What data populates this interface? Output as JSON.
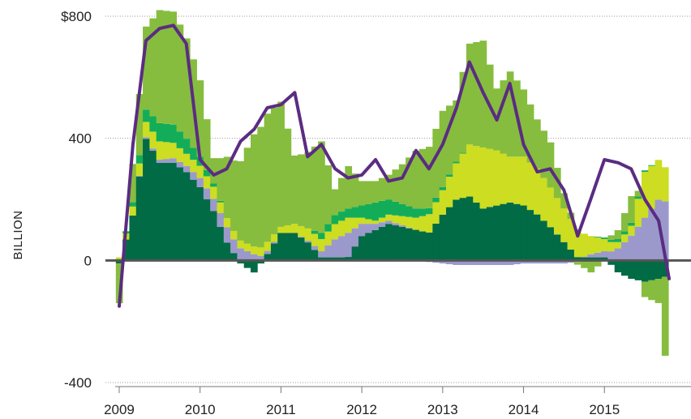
{
  "chart_data": {
    "type": "area",
    "title": "",
    "xlabel": "",
    "ylabel": "BILLION",
    "xlim": [
      2008.95,
      2015.85
    ],
    "ylim": [
      -420,
      830
    ],
    "x_ticks": [
      2009,
      2010,
      2011,
      2012,
      2013,
      2014,
      2015
    ],
    "x_tick_labels": [
      "2009",
      "2010",
      "2011",
      "2012",
      "2013",
      "2014",
      "2015"
    ],
    "y_ticks": [
      -400,
      0,
      400,
      800
    ],
    "y_tick_labels": [
      "-400",
      "0",
      "400",
      "$800"
    ],
    "grid": "horizontal dotted",
    "legend": "none",
    "x": [
      2009.0,
      2009.17,
      2009.33,
      2009.5,
      2009.67,
      2009.83,
      2010.0,
      2010.17,
      2010.33,
      2010.5,
      2010.67,
      2010.83,
      2011.0,
      2011.17,
      2011.33,
      2011.5,
      2011.67,
      2011.83,
      2012.0,
      2012.17,
      2012.33,
      2012.5,
      2012.67,
      2012.83,
      2013.0,
      2013.17,
      2013.33,
      2013.5,
      2013.67,
      2013.83,
      2014.0,
      2014.17,
      2014.33,
      2014.5,
      2014.67,
      2014.83,
      2015.0,
      2015.17,
      2015.33,
      2015.5,
      2015.67,
      2015.8
    ],
    "series": [
      {
        "color": "#006b45",
        "values": [
          -10,
          150,
          400,
          320,
          320,
          290,
          240,
          160,
          60,
          -10,
          -40,
          20,
          90,
          90,
          60,
          10,
          10,
          10,
          80,
          100,
          120,
          110,
          100,
          90,
          150,
          200,
          210,
          170,
          180,
          190,
          180,
          150,
          110,
          60,
          10,
          10,
          10,
          -40,
          -60,
          -70,
          -60,
          -50
        ]
      },
      {
        "color": "#9b99cc",
        "values": [
          0,
          0,
          5,
          10,
          15,
          20,
          30,
          40,
          50,
          40,
          20,
          10,
          0,
          0,
          5,
          20,
          60,
          80,
          40,
          20,
          10,
          5,
          0,
          -5,
          -10,
          -15,
          -15,
          -15,
          -15,
          -15,
          -10,
          -10,
          -10,
          -10,
          -5,
          10,
          20,
          40,
          80,
          140,
          200,
          190
        ]
      },
      {
        "color": "#ccdd22",
        "values": [
          10,
          30,
          50,
          60,
          50,
          40,
          40,
          40,
          30,
          25,
          25,
          30,
          20,
          30,
          40,
          40,
          50,
          50,
          20,
          10,
          20,
          30,
          40,
          60,
          80,
          120,
          170,
          200,
          180,
          150,
          160,
          150,
          130,
          110,
          90,
          60,
          40,
          20,
          30,
          150,
          130,
          100
        ]
      },
      {
        "color": "#13ad5a",
        "values": [
          0,
          15,
          40,
          60,
          60,
          50,
          30,
          10,
          0,
          0,
          0,
          0,
          0,
          0,
          0,
          20,
          30,
          30,
          40,
          60,
          50,
          40,
          30,
          20,
          10,
          5,
          0,
          0,
          0,
          0,
          0,
          0,
          0,
          0,
          0,
          0,
          5,
          10,
          10,
          5,
          0,
          0
        ]
      },
      {
        "color": "#86bd3e",
        "values": [
          -130,
          130,
          270,
          370,
          370,
          330,
          250,
          80,
          200,
          260,
          370,
          420,
          410,
          220,
          250,
          300,
          80,
          140,
          80,
          70,
          80,
          130,
          190,
          200,
          250,
          200,
          330,
          350,
          200,
          280,
          220,
          160,
          150,
          50,
          -10,
          -40,
          0,
          30,
          90,
          -50,
          -80,
          -370
        ]
      }
    ],
    "line": {
      "color": "#5b2c82",
      "values": [
        -150,
        380,
        720,
        760,
        770,
        710,
        330,
        280,
        300,
        390,
        430,
        500,
        510,
        550,
        340,
        380,
        300,
        270,
        280,
        330,
        260,
        270,
        360,
        300,
        380,
        500,
        650,
        550,
        460,
        580,
        380,
        290,
        300,
        230,
        80,
        200,
        330,
        320,
        300,
        200,
        130,
        -60
      ]
    }
  }
}
